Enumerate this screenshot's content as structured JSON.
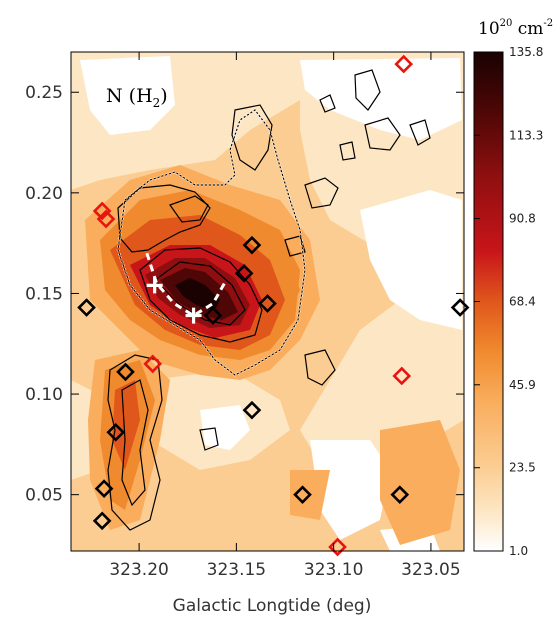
{
  "chart_data": {
    "type": "heatmap",
    "title": "",
    "panel_label": "N (H",
    "panel_label_sub": "2",
    "panel_label_close": ")",
    "xlabel": "Galactic Longtide (deg)",
    "ylabel": "",
    "xlim": [
      323.235,
      323.033
    ],
    "ylim": [
      0.022,
      0.27
    ],
    "x_reversed": true,
    "x_ticks": [
      323.2,
      323.15,
      323.1,
      323.05
    ],
    "x_tick_labels": [
      "323.20",
      "323.15",
      "323.10",
      "323.05"
    ],
    "y_ticks": [
      0.05,
      0.1,
      0.15,
      0.2,
      0.25
    ],
    "y_tick_labels": [
      "0.05",
      "0.10",
      "0.15",
      "0.20",
      "0.25"
    ],
    "colorbar": {
      "unit_base": "10",
      "unit_exp": "20",
      "unit_rest": " cm",
      "unit_exp2": "-2",
      "min": 1.0,
      "max": 135.8,
      "tick_values": [
        1.0,
        23.5,
        45.9,
        68.4,
        90.8,
        113.3,
        135.8
      ],
      "tick_labels": [
        "1.0",
        "23.5",
        "45.9",
        "68.4",
        "90.8",
        "113.3",
        "135.8"
      ]
    },
    "peak_markers": [
      {
        "l": 323.192,
        "b": 0.154
      },
      {
        "l": 323.172,
        "b": 0.139
      }
    ],
    "filament_path": [
      {
        "l": 323.196,
        "b": 0.17
      },
      {
        "l": 323.191,
        "b": 0.155
      },
      {
        "l": 323.182,
        "b": 0.145
      },
      {
        "l": 323.172,
        "b": 0.139
      },
      {
        "l": 323.162,
        "b": 0.145
      },
      {
        "l": 323.155,
        "b": 0.157
      }
    ],
    "black_diamonds": [
      {
        "l": 323.227,
        "b": 0.143
      },
      {
        "l": 323.207,
        "b": 0.111
      },
      {
        "l": 323.212,
        "b": 0.081
      },
      {
        "l": 323.218,
        "b": 0.053
      },
      {
        "l": 323.219,
        "b": 0.037
      },
      {
        "l": 323.162,
        "b": 0.139
      },
      {
        "l": 323.146,
        "b": 0.16
      },
      {
        "l": 323.142,
        "b": 0.174
      },
      {
        "l": 323.134,
        "b": 0.145
      },
      {
        "l": 323.142,
        "b": 0.092
      },
      {
        "l": 323.116,
        "b": 0.05
      },
      {
        "l": 323.066,
        "b": 0.05
      },
      {
        "l": 323.035,
        "b": 0.143
      }
    ],
    "red_diamonds": [
      {
        "l": 323.219,
        "b": 0.191
      },
      {
        "l": 323.217,
        "b": 0.187
      },
      {
        "l": 323.193,
        "b": 0.115
      },
      {
        "l": 323.065,
        "b": 0.109
      },
      {
        "l": 323.064,
        "b": 0.264
      },
      {
        "l": 323.098,
        "b": 0.024
      }
    ]
  },
  "colors": {
    "c1": "#ffffff",
    "c2": "#fde6c4",
    "c3": "#fbcd92",
    "c4": "#f9ad5d",
    "c5": "#f08a2e",
    "c6": "#e0571c",
    "c7": "#c8151a",
    "c8": "#8f0f10",
    "c9": "#4e0706",
    "c10": "#1a0202"
  }
}
